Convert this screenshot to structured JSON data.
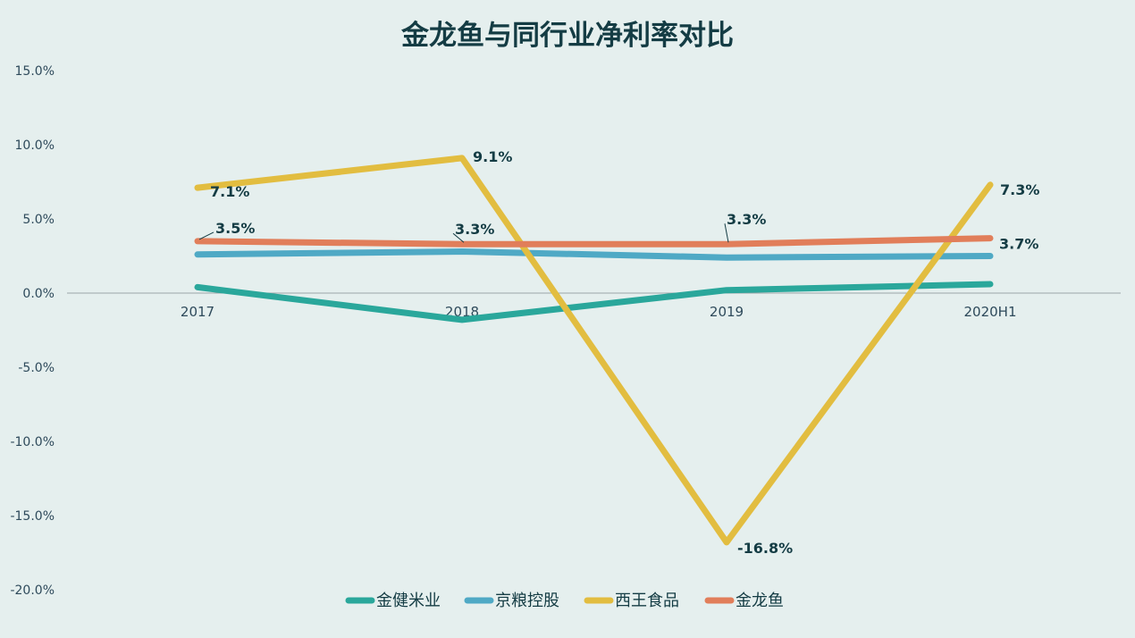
{
  "chart_data": {
    "type": "line",
    "title": "金龙鱼与同行业净利率对比",
    "categories": [
      "2017",
      "2018",
      "2019",
      "2020H1"
    ],
    "ylim": [
      -20,
      15
    ],
    "yticks": [
      15,
      10,
      5,
      0,
      -5,
      -10,
      -15,
      -20
    ],
    "ytick_labels": [
      "15.0%",
      "10.0%",
      "5.0%",
      "0.0%",
      "-5.0%",
      "-10.0%",
      "-15.0%",
      "-20.0%"
    ],
    "grid": false,
    "legend_position": "bottom",
    "series": [
      {
        "name": "金健米业",
        "color": "#2aa79b",
        "values": [
          0.4,
          -1.8,
          0.2,
          0.6
        ],
        "labels": [
          null,
          null,
          null,
          null
        ]
      },
      {
        "name": "京粮控股",
        "color": "#4fa9c5",
        "values": [
          2.6,
          2.8,
          2.4,
          2.5
        ],
        "labels": [
          null,
          null,
          null,
          null
        ]
      },
      {
        "name": "西王食品",
        "color": "#e2bd40",
        "values": [
          7.1,
          9.1,
          -16.8,
          7.3
        ],
        "labels": [
          "7.1%",
          "9.1%",
          "-16.8%",
          "7.3%"
        ]
      },
      {
        "name": "金龙鱼",
        "color": "#e17e5a",
        "values": [
          3.5,
          3.3,
          3.3,
          3.7
        ],
        "labels": [
          "3.5%",
          "3.3%",
          "3.3%",
          "3.7%"
        ]
      }
    ]
  }
}
